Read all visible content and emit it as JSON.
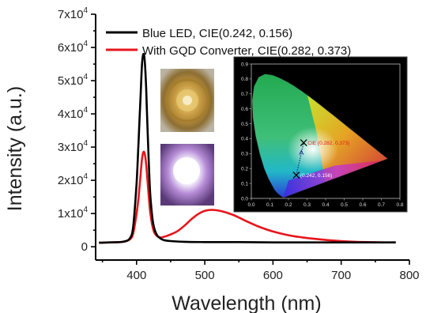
{
  "chart_data": {
    "type": "line",
    "xlabel": "Wavelength (nm)",
    "ylabel": "Intensity (a.u.)",
    "xlim": [
      340,
      800
    ],
    "ylim": [
      -4000,
      70000
    ],
    "x_ticks": [
      400,
      500,
      600,
      700,
      800
    ],
    "y_ticks": [
      {
        "value": 0,
        "mantissa": "0",
        "exp": ""
      },
      {
        "value": 10000,
        "mantissa": "1x10",
        "exp": "4"
      },
      {
        "value": 20000,
        "mantissa": "2x10",
        "exp": "4"
      },
      {
        "value": 30000,
        "mantissa": "3x10",
        "exp": "4"
      },
      {
        "value": 40000,
        "mantissa": "4x10",
        "exp": "4"
      },
      {
        "value": 50000,
        "mantissa": "5x10",
        "exp": "4"
      },
      {
        "value": 60000,
        "mantissa": "6x10",
        "exp": "4"
      },
      {
        "value": 70000,
        "mantissa": "7x10",
        "exp": "4"
      }
    ],
    "legend_position": "top-right",
    "series": [
      {
        "name": "Blue LED, CIE(0.242, 0.156)",
        "color": "#000000",
        "x": [
          345,
          360,
          380,
          390,
          395,
          400,
          403,
          406,
          408,
          410,
          412,
          414,
          416,
          418,
          420,
          423,
          426,
          430,
          435,
          440,
          450,
          470,
          500,
          550,
          600,
          650,
          700,
          750,
          780
        ],
        "y": [
          1200,
          1300,
          1500,
          2500,
          6000,
          19000,
          32000,
          46000,
          55000,
          58000,
          56000,
          48000,
          36000,
          25000,
          16000,
          9000,
          5500,
          3500,
          2500,
          2000,
          1700,
          1500,
          1400,
          1400,
          1300,
          1300,
          1300,
          1300,
          1300
        ]
      },
      {
        "name": "With GQD Converter, CIE(0.282, 0.373)",
        "color": "#e8141b",
        "x": [
          345,
          360,
          380,
          390,
          395,
          400,
          403,
          406,
          408,
          410,
          412,
          414,
          416,
          418,
          420,
          423,
          426,
          430,
          435,
          440,
          445,
          450,
          460,
          470,
          480,
          490,
          500,
          510,
          520,
          530,
          540,
          550,
          560,
          580,
          600,
          620,
          640,
          660,
          680,
          700,
          720,
          740,
          760,
          780
        ],
        "y": [
          1200,
          1300,
          1500,
          2200,
          4000,
          10000,
          15000,
          22000,
          26500,
          28500,
          28000,
          25000,
          20000,
          15000,
          10500,
          6500,
          4300,
          3200,
          2800,
          3000,
          3300,
          3700,
          4700,
          6300,
          8200,
          9800,
          10800,
          11100,
          10900,
          10400,
          9700,
          8800,
          7800,
          6000,
          4600,
          3600,
          2900,
          2400,
          2000,
          1700,
          1500,
          1400,
          1300,
          1300
        ]
      }
    ]
  },
  "inset": {
    "x_ticks": [
      "0.0",
      "0.1",
      "0.2",
      "0.3",
      "0.4",
      "0.5",
      "0.6",
      "0.7",
      "0.8"
    ],
    "y_ticks": [
      "0.0",
      "0.1",
      "0.2",
      "0.3",
      "0.4",
      "0.5",
      "0.6",
      "0.7",
      "0.8",
      "0.9"
    ],
    "points": [
      {
        "label": "CIE (0.282, 0.373)",
        "x": 0.282,
        "y": 0.373,
        "color": "#e8141b"
      },
      {
        "label": "(0.242, 0.156)",
        "x": 0.242,
        "y": 0.156,
        "color": "#ffffff"
      }
    ]
  }
}
